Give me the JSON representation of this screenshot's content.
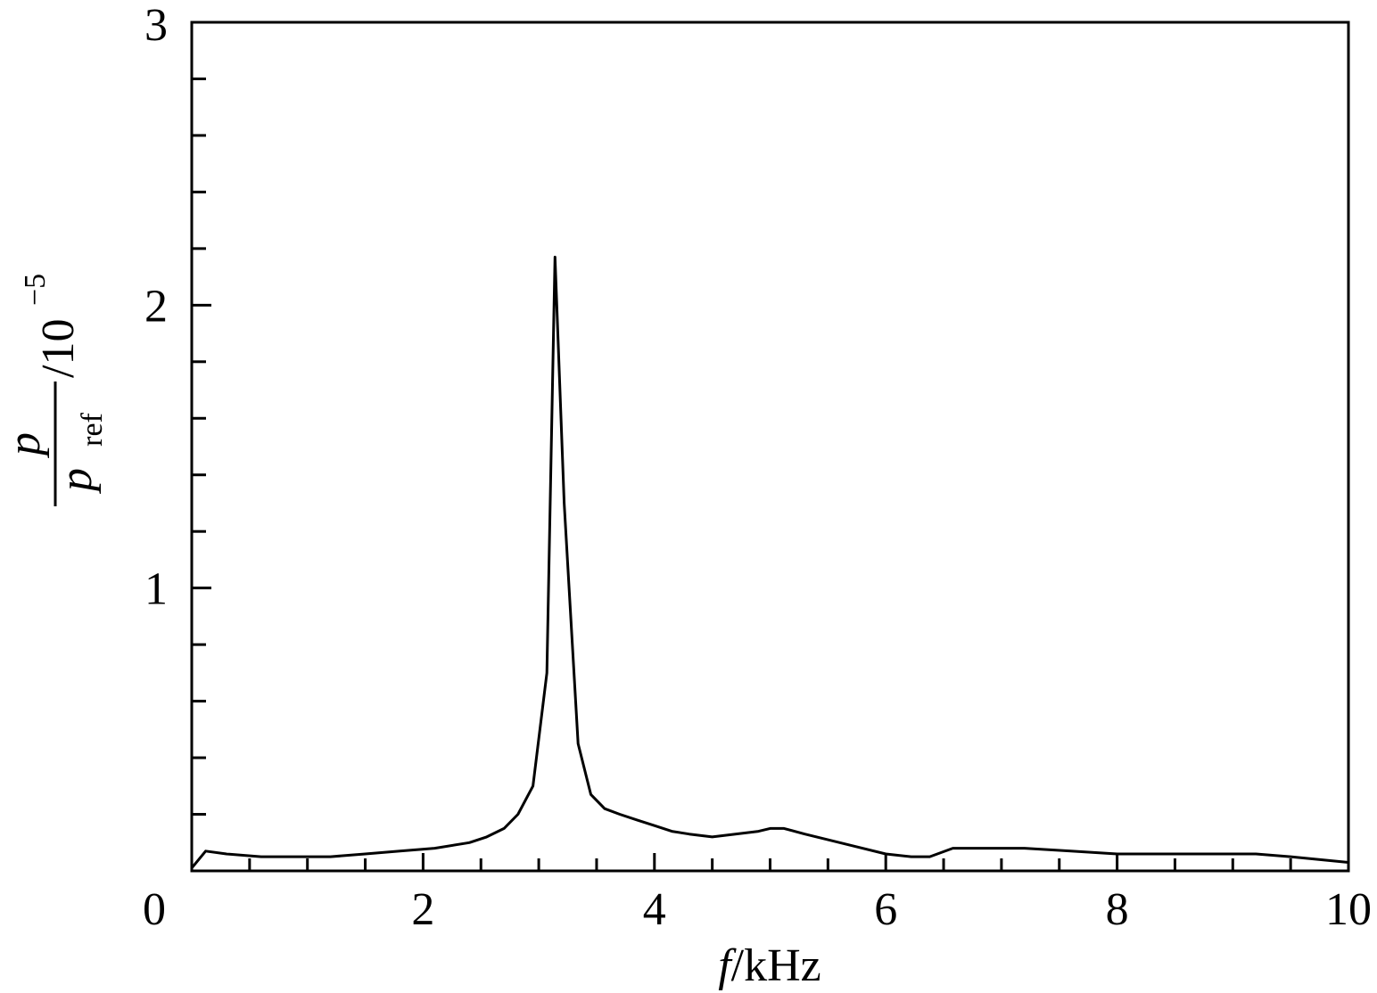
{
  "chart_data": {
    "type": "line",
    "xlim": [
      0,
      10
    ],
    "ylim": [
      0,
      3
    ],
    "x_ticks": [
      0,
      2,
      4,
      6,
      8,
      10
    ],
    "x_tick_labels": [
      "0",
      "2",
      "4",
      "6",
      "8",
      "10"
    ],
    "x_minor_step": 0.5,
    "y_ticks": [
      0,
      1,
      2,
      3
    ],
    "y_tick_labels": [
      "0",
      "1",
      "2",
      "3"
    ],
    "y_minor_step": 0.2,
    "xlabel": {
      "var": "f",
      "unit": "/kHz"
    },
    "ylabel": {
      "numerator": "p",
      "denominator": "p",
      "denominator_sub": "ref",
      "scale": "/10",
      "scale_exp": "−5"
    },
    "grid": false,
    "line_color": "#000000",
    "series": [
      {
        "x": [
          0.0,
          0.12,
          0.3,
          0.6,
          0.9,
          1.2,
          1.5,
          1.8,
          2.1,
          2.4,
          2.55,
          2.7,
          2.82,
          2.95,
          3.07,
          3.14,
          3.22,
          3.34,
          3.45,
          3.57,
          3.7,
          3.85,
          4.0,
          4.15,
          4.3,
          4.5,
          4.7,
          4.9,
          5.0,
          5.12,
          5.3,
          5.5,
          5.7,
          6.0,
          6.22,
          6.38,
          6.58,
          6.8,
          7.2,
          7.6,
          8.0,
          8.4,
          8.8,
          9.2,
          9.5,
          10.0
        ],
        "y": [
          0.01,
          0.07,
          0.06,
          0.05,
          0.05,
          0.05,
          0.06,
          0.07,
          0.08,
          0.1,
          0.12,
          0.15,
          0.2,
          0.3,
          0.7,
          2.17,
          1.3,
          0.45,
          0.27,
          0.22,
          0.2,
          0.18,
          0.16,
          0.14,
          0.13,
          0.12,
          0.13,
          0.14,
          0.15,
          0.15,
          0.13,
          0.11,
          0.09,
          0.06,
          0.05,
          0.05,
          0.08,
          0.08,
          0.08,
          0.07,
          0.06,
          0.06,
          0.06,
          0.06,
          0.05,
          0.03
        ]
      }
    ]
  }
}
